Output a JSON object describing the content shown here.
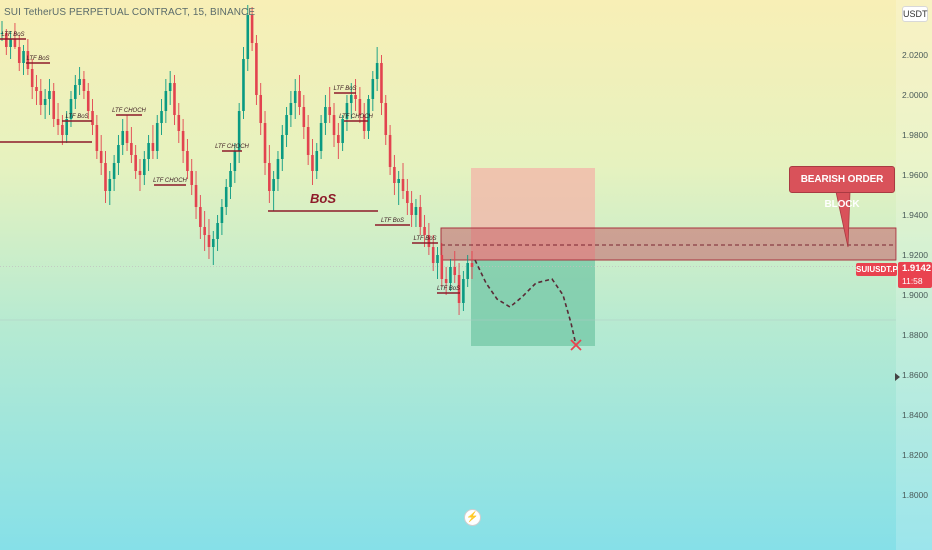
{
  "header": {
    "title": "SUI TetherUS PERPETUAL CONTRACT, 15, BINANCE",
    "currency_label": "USDT"
  },
  "price_axis": {
    "ticks": [
      "2.0200",
      "2.0000",
      "1.9800",
      "1.9600",
      "1.9400",
      "1.9200",
      "1.9000",
      "1.8800",
      "1.8600",
      "1.8400",
      "1.8200",
      "1.8000"
    ],
    "current_price": "1.9142",
    "countdown": "11:58",
    "ticker": "SUIUSDT.P"
  },
  "chart_data": {
    "type": "candlestick",
    "symbol": "SUIUSDT.P",
    "interval": "15",
    "exchange": "BINANCE",
    "ylim": [
      1.79,
      2.045
    ],
    "grid": false,
    "current_price": 1.9142,
    "candles_ohlc": [
      [
        2.031,
        2.037,
        2.027,
        2.031
      ],
      [
        2.031,
        2.033,
        2.02,
        2.024
      ],
      [
        2.024,
        2.032,
        2.018,
        2.028
      ],
      [
        2.028,
        2.036,
        2.023,
        2.024
      ],
      [
        2.024,
        2.03,
        2.012,
        2.016
      ],
      [
        2.016,
        2.025,
        2.01,
        2.022
      ],
      [
        2.022,
        2.028,
        2.01,
        2.013
      ],
      [
        2.013,
        2.018,
        1.998,
        2.004
      ],
      [
        2.004,
        2.01,
        1.995,
        2.002
      ],
      [
        2.002,
        2.008,
        1.99,
        1.995
      ],
      [
        1.995,
        2.003,
        1.988,
        1.998
      ],
      [
        1.998,
        2.008,
        1.99,
        2.002
      ],
      [
        2.002,
        2.006,
        1.984,
        1.988
      ],
      [
        1.988,
        1.996,
        1.98,
        1.985
      ],
      [
        1.985,
        1.99,
        1.975,
        1.98
      ],
      [
        1.98,
        1.992,
        1.976,
        1.988
      ],
      [
        1.988,
        2.002,
        1.984,
        1.998
      ],
      [
        1.998,
        2.01,
        1.993,
        2.005
      ],
      [
        2.005,
        2.014,
        2.0,
        2.008
      ],
      [
        2.008,
        2.012,
        1.998,
        2.002
      ],
      [
        2.002,
        2.006,
        1.988,
        1.992
      ],
      [
        1.992,
        1.998,
        1.98,
        1.985
      ],
      [
        1.985,
        1.99,
        1.968,
        1.972
      ],
      [
        1.972,
        1.98,
        1.96,
        1.966
      ],
      [
        1.966,
        1.972,
        1.946,
        1.952
      ],
      [
        1.952,
        1.962,
        1.945,
        1.958
      ],
      [
        1.958,
        1.97,
        1.952,
        1.966
      ],
      [
        1.966,
        1.98,
        1.96,
        1.975
      ],
      [
        1.975,
        1.988,
        1.97,
        1.982
      ],
      [
        1.982,
        1.99,
        1.972,
        1.976
      ],
      [
        1.976,
        1.984,
        1.966,
        1.97
      ],
      [
        1.97,
        1.975,
        1.958,
        1.962
      ],
      [
        1.962,
        1.968,
        1.952,
        1.96
      ],
      [
        1.96,
        1.972,
        1.955,
        1.968
      ],
      [
        1.968,
        1.98,
        1.962,
        1.976
      ],
      [
        1.976,
        1.985,
        1.968,
        1.972
      ],
      [
        1.972,
        1.99,
        1.968,
        1.986
      ],
      [
        1.986,
        1.998,
        1.98,
        1.992
      ],
      [
        1.992,
        2.008,
        1.986,
        2.002
      ],
      [
        2.002,
        2.012,
        1.995,
        2.006
      ],
      [
        2.006,
        2.01,
        1.985,
        1.99
      ],
      [
        1.99,
        1.996,
        1.976,
        1.982
      ],
      [
        1.982,
        1.988,
        1.966,
        1.972
      ],
      [
        1.972,
        1.978,
        1.958,
        1.962
      ],
      [
        1.962,
        1.968,
        1.95,
        1.955
      ],
      [
        1.955,
        1.962,
        1.938,
        1.944
      ],
      [
        1.944,
        1.95,
        1.928,
        1.934
      ],
      [
        1.934,
        1.942,
        1.922,
        1.93
      ],
      [
        1.93,
        1.938,
        1.918,
        1.924
      ],
      [
        1.924,
        1.932,
        1.915,
        1.928
      ],
      [
        1.928,
        1.94,
        1.922,
        1.936
      ],
      [
        1.936,
        1.948,
        1.93,
        1.944
      ],
      [
        1.944,
        1.958,
        1.94,
        1.954
      ],
      [
        1.954,
        1.966,
        1.948,
        1.962
      ],
      [
        1.962,
        1.976,
        1.956,
        1.972
      ],
      [
        1.972,
        1.996,
        1.966,
        1.992
      ],
      [
        1.992,
        2.024,
        1.988,
        2.018
      ],
      [
        2.018,
        2.045,
        2.012,
        2.04
      ],
      [
        2.04,
        2.044,
        2.022,
        2.026
      ],
      [
        2.026,
        2.03,
        1.995,
        2.0
      ],
      [
        2.0,
        2.006,
        1.98,
        1.986
      ],
      [
        1.986,
        1.992,
        1.96,
        1.966
      ],
      [
        1.966,
        1.975,
        1.946,
        1.952
      ],
      [
        1.952,
        1.962,
        1.942,
        1.958
      ],
      [
        1.958,
        1.972,
        1.952,
        1.968
      ],
      [
        1.968,
        1.985,
        1.962,
        1.98
      ],
      [
        1.98,
        1.994,
        1.974,
        1.99
      ],
      [
        1.99,
        2.002,
        1.984,
        1.996
      ],
      [
        1.996,
        2.008,
        1.988,
        2.002
      ],
      [
        2.002,
        2.01,
        1.99,
        1.994
      ],
      [
        1.994,
        2.0,
        1.978,
        1.984
      ],
      [
        1.984,
        1.99,
        1.965,
        1.97
      ],
      [
        1.97,
        1.978,
        1.955,
        1.962
      ],
      [
        1.962,
        1.976,
        1.958,
        1.972
      ],
      [
        1.972,
        1.99,
        1.968,
        1.986
      ],
      [
        1.986,
        2.0,
        1.98,
        1.994
      ],
      [
        1.994,
        2.004,
        1.986,
        1.99
      ],
      [
        1.99,
        1.996,
        1.974,
        1.98
      ],
      [
        1.98,
        1.986,
        1.968,
        1.976
      ],
      [
        1.976,
        1.99,
        1.972,
        1.988
      ],
      [
        1.988,
        2.0,
        1.982,
        1.996
      ],
      [
        1.996,
        2.006,
        1.988,
        2.0
      ],
      [
        2.0,
        2.008,
        1.992,
        1.998
      ],
      [
        1.998,
        2.004,
        1.986,
        1.99
      ],
      [
        1.99,
        1.996,
        1.978,
        1.982
      ],
      [
        1.982,
        2.0,
        1.978,
        1.998
      ],
      [
        1.998,
        2.012,
        1.992,
        2.008
      ],
      [
        2.008,
        2.024,
        2.002,
        2.016
      ],
      [
        2.016,
        2.02,
        1.99,
        1.996
      ],
      [
        1.996,
        2.0,
        1.975,
        1.98
      ],
      [
        1.98,
        1.985,
        1.96,
        1.964
      ],
      [
        1.964,
        1.97,
        1.95,
        1.956
      ],
      [
        1.956,
        1.962,
        1.945,
        1.958
      ],
      [
        1.958,
        1.966,
        1.948,
        1.952
      ],
      [
        1.952,
        1.958,
        1.94,
        1.946
      ],
      [
        1.946,
        1.952,
        1.934,
        1.94
      ],
      [
        1.94,
        1.948,
        1.934,
        1.944
      ],
      [
        1.944,
        1.95,
        1.93,
        1.934
      ],
      [
        1.934,
        1.94,
        1.924,
        1.93
      ],
      [
        1.93,
        1.936,
        1.92,
        1.924
      ],
      [
        1.924,
        1.93,
        1.912,
        1.916
      ],
      [
        1.916,
        1.924,
        1.908,
        1.92
      ],
      [
        1.92,
        1.926,
        1.904,
        1.908
      ],
      [
        1.908,
        1.914,
        1.9,
        1.906
      ],
      [
        1.906,
        1.918,
        1.902,
        1.914
      ],
      [
        1.914,
        1.922,
        1.906,
        1.91
      ],
      [
        1.91,
        1.916,
        1.89,
        1.896
      ],
      [
        1.896,
        1.912,
        1.892,
        1.908
      ],
      [
        1.908,
        1.92,
        1.904,
        1.916
      ],
      [
        1.916,
        1.922,
        1.908,
        1.914
      ]
    ],
    "levels": [
      {
        "label": "LTF BoS",
        "price": 2.028
      },
      {
        "label": "LTF BoS",
        "price": 2.016
      },
      {
        "label": "LTF BoS",
        "price": 1.987
      },
      {
        "label": "LTF CHOCH",
        "price": 1.99
      },
      {
        "label": "LTF CHOCH",
        "price": 1.955
      },
      {
        "label": "LTF CHOCH",
        "price": 1.972
      },
      {
        "label": "BoS",
        "price": 1.942
      },
      {
        "label": "LTF BoS",
        "price": 2.001
      },
      {
        "label": "LTF CHOCH",
        "price": 1.987
      },
      {
        "label": "LTF BoS",
        "price": 1.935
      },
      {
        "label": "LTF BoS",
        "price": 1.926
      },
      {
        "label": "LTF BoS",
        "price": 1.901
      }
    ],
    "order_block": {
      "label": "BEARISH ORDER BLOCK",
      "top": 1.9335,
      "bottom": 1.9175,
      "mid": 1.925
    },
    "short_position": {
      "entry": 1.9175,
      "stop": 1.9635,
      "target": 1.8745
    },
    "projection": [
      1.9175,
      1.906,
      1.898,
      1.894,
      1.899,
      1.906,
      1.908,
      1.9,
      1.886,
      1.875
    ]
  },
  "colors": {
    "bull": "#0a9a82",
    "bear": "#e2434f",
    "level": "#8d1b2a",
    "order_block_fill": "#c96068",
    "short_stop_fill": "#f3b4a8",
    "short_target_fill": "#73c7a6",
    "cross": "#e8434f"
  },
  "icons": {
    "bolt": "lightning-icon",
    "axis_marker": "triangle-right-icon"
  }
}
